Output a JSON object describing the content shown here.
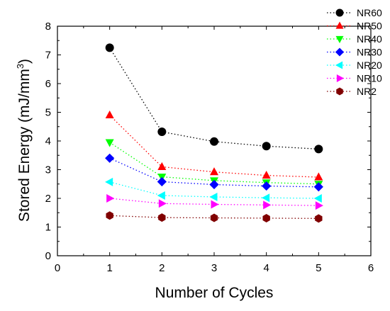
{
  "chart_data": {
    "type": "line",
    "xlabel": "Number of Cycles",
    "ylabel_parts": [
      "Stored Energy (mJ/mm",
      "3",
      ")"
    ],
    "xlim": [
      0,
      6
    ],
    "ylim": [
      0,
      8
    ],
    "xticks": [
      "0",
      "1",
      "2",
      "3",
      "4",
      "5",
      "6"
    ],
    "yticks": [
      "0",
      "1",
      "2",
      "3",
      "4",
      "5",
      "6",
      "7",
      "8"
    ],
    "x": [
      1,
      2,
      3,
      4,
      5
    ],
    "grid": false,
    "legend_position": "top-right",
    "series": [
      {
        "name": "NR60",
        "marker": "circle",
        "color": "#000000",
        "values": [
          7.25,
          4.32,
          3.98,
          3.82,
          3.72
        ]
      },
      {
        "name": "NR50",
        "marker": "triangle-up",
        "color": "#ff0000",
        "values": [
          4.9,
          3.1,
          2.92,
          2.8,
          2.74
        ]
      },
      {
        "name": "NR40",
        "marker": "triangle-down",
        "color": "#00ff00",
        "values": [
          3.95,
          2.75,
          2.62,
          2.55,
          2.5
        ]
      },
      {
        "name": "NR30",
        "marker": "diamond",
        "color": "#0000ff",
        "values": [
          3.4,
          2.58,
          2.48,
          2.43,
          2.4
        ]
      },
      {
        "name": "NR20",
        "marker": "triangle-left",
        "color": "#00ffff",
        "values": [
          2.57,
          2.1,
          2.05,
          2.02,
          2.0
        ]
      },
      {
        "name": "NR10",
        "marker": "triangle-right",
        "color": "#ff00ff",
        "values": [
          2.0,
          1.82,
          1.79,
          1.77,
          1.75
        ]
      },
      {
        "name": "NR2",
        "marker": "hexagon",
        "color": "#800000",
        "values": [
          1.4,
          1.33,
          1.32,
          1.31,
          1.3
        ]
      }
    ]
  }
}
